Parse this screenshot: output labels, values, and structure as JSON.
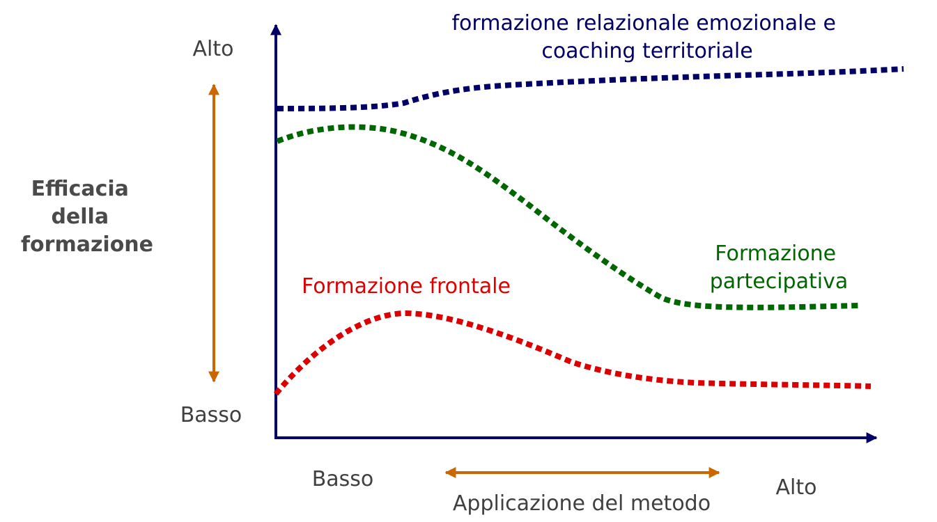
{
  "y_axis": {
    "title_lines": [
      "Efficacia",
      "della",
      "formazione"
    ],
    "high_label": "Alto",
    "low_label": "Basso"
  },
  "x_axis": {
    "title": "Applicazione del metodo",
    "low_label": "Basso",
    "high_label": "Alto"
  },
  "series": [
    {
      "id": "relazionale",
      "label_lines": [
        "formazione relazionale emozionale e",
        "coaching territoriale"
      ],
      "color": "#000066"
    },
    {
      "id": "partecipativa",
      "label_lines": [
        "Formazione",
        "partecipativa"
      ],
      "color": "#006600"
    },
    {
      "id": "frontale",
      "label_lines": [
        "Formazione frontale"
      ],
      "color": "#dd0000"
    }
  ],
  "colors": {
    "axis": "#000066",
    "range_arrow": "#cc6600",
    "label_gray": "#404040"
  }
}
